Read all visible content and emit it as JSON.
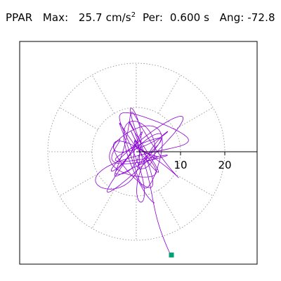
{
  "header": {
    "channel": "PPAR",
    "max_label": "Max:",
    "max_value": "25.7",
    "max_unit": "cm/s",
    "max_unit_exp": "2",
    "per_label": "Per:",
    "per_value": "0.600 s",
    "ang_label": "Ang:",
    "ang_value": "-72.8"
  },
  "chart_data": {
    "type": "polar-trajectory",
    "radial_ticks": [
      {
        "value": 10,
        "label": "10"
      },
      {
        "value": 20,
        "label": "20"
      }
    ],
    "r_max": 25.7,
    "angle_deg": -72.8,
    "grid": "dotted circles and radial spokes every 30°",
    "colors": {
      "trajectory": "#8a00d4",
      "end_marker": "#00a070",
      "grid": "#888888",
      "axis": "#000000"
    },
    "trajectory": {
      "description_seeded": true,
      "points": 1400
    }
  }
}
